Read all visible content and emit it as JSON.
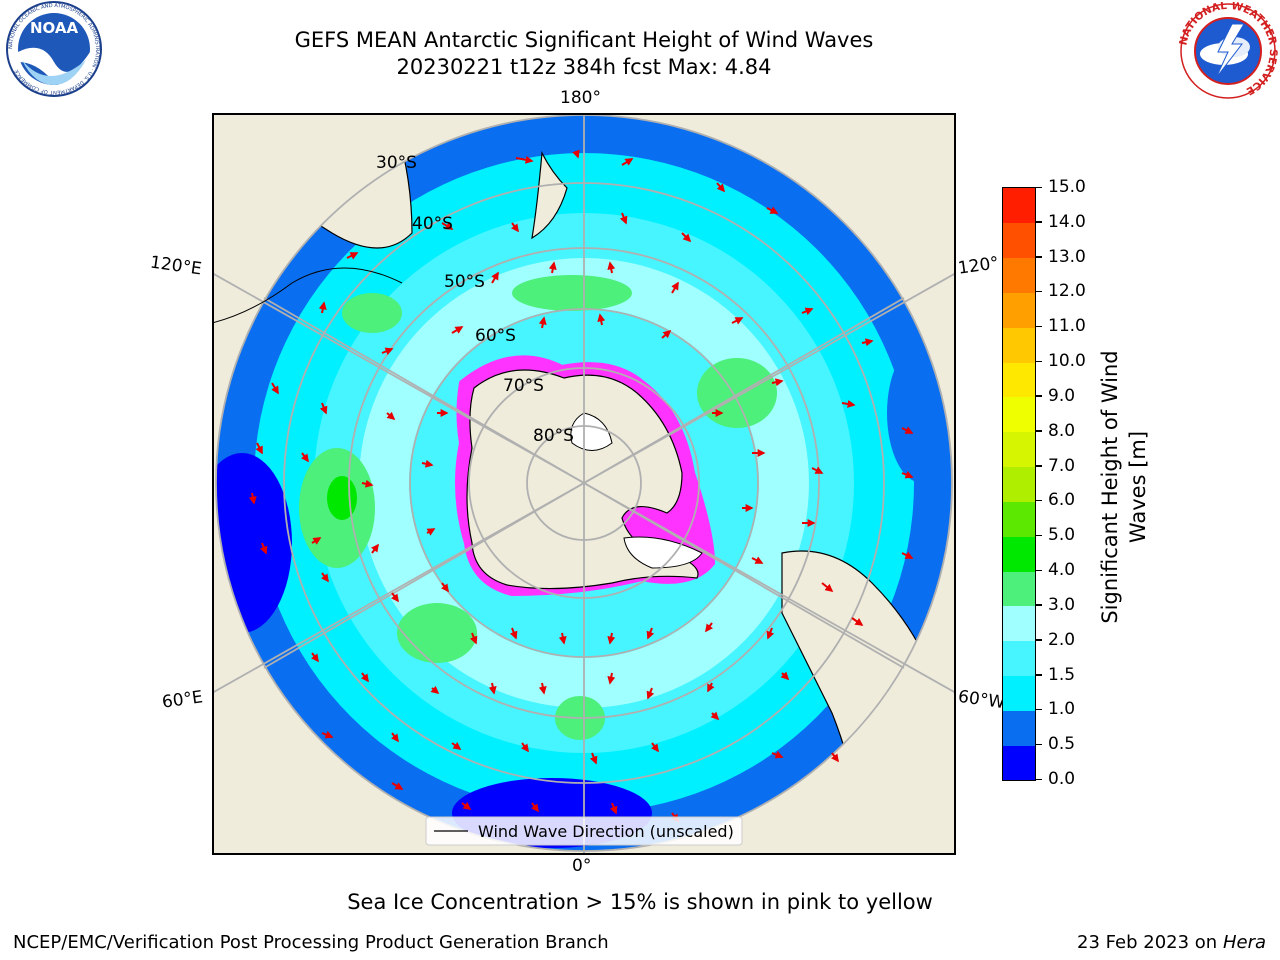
{
  "header": {
    "title_line1": "GEFS MEAN Antarctic Significant Height of Wind Waves",
    "title_line2": "20230221 t12z 384h fcst   Max: 4.84"
  },
  "logos": {
    "left": {
      "name": "noaa-logo",
      "text": "NOAA",
      "ring_text": "NATIONAL OCEANIC AND ATMOSPHERIC ADMINISTRATION · U.S. DEPARTMENT OF COMMERCE"
    },
    "right": {
      "name": "nws-logo",
      "ring_text": "NATIONAL WEATHER SERVICE"
    }
  },
  "map": {
    "projection": "south-polar-stereographic",
    "longitude_labels": {
      "top": "180°",
      "bottom": "0°",
      "left_upper": "120°E",
      "left_lower": "60°E",
      "right_upper": "120°",
      "right_lower": "60°W"
    },
    "latitude_labels": [
      "30°S",
      "40°S",
      "50°S",
      "60°S",
      "70°S",
      "80°S"
    ],
    "legend_label": "Wind Wave Direction (unscaled)",
    "land_color": "#efecdc",
    "ice_color": "#ff33ff"
  },
  "colorbar": {
    "label": "Significant Height of Wind Waves [m]",
    "label_line1": "Significant Height of Wind",
    "label_line2": "Waves [m]",
    "ticks": [
      "0.0",
      "0.5",
      "1.0",
      "1.5",
      "2.0",
      "3.0",
      "4.0",
      "5.0",
      "6.0",
      "7.0",
      "8.0",
      "9.0",
      "10.0",
      "11.0",
      "12.0",
      "13.0",
      "14.0",
      "15.0"
    ],
    "colors": [
      "#0000ff",
      "#0a6ef0",
      "#00f0ff",
      "#46f5ff",
      "#a0ffff",
      "#4cf07a",
      "#00e800",
      "#5ce800",
      "#b0ee00",
      "#d6f500",
      "#f0ff00",
      "#ffe800",
      "#ffc800",
      "#ffa000",
      "#ff7800",
      "#ff5000",
      "#ff1e00"
    ]
  },
  "chart_data": {
    "type": "heatmap",
    "field": "Significant Height of Wind Waves",
    "units": "m",
    "value_range": [
      0,
      15
    ],
    "max": 4.84
  },
  "annotation": "Sea Ice Concentration > 15% is shown in pink to yellow",
  "footer": {
    "left": "NCEP/EMC/Verification Post Processing Product Generation Branch",
    "right_date": "23 Feb 2023 on",
    "right_machine": "Hera"
  }
}
